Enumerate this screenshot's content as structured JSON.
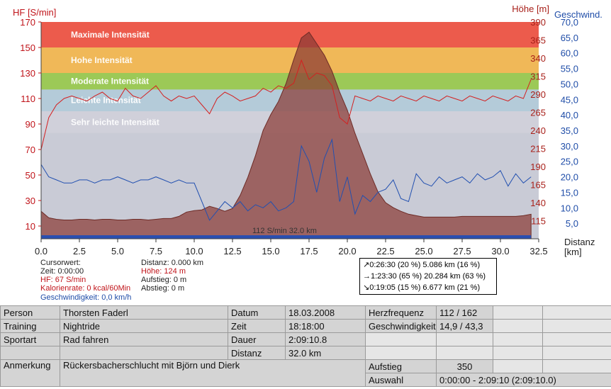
{
  "chart_data": {
    "type": "line",
    "x": [
      0,
      0.5,
      1,
      1.5,
      2,
      2.5,
      3,
      3.5,
      4,
      4.5,
      5,
      5.5,
      6,
      6.5,
      7,
      7.5,
      8,
      8.5,
      9,
      9.5,
      10,
      10.5,
      11,
      11.5,
      12,
      12.5,
      13,
      13.5,
      14,
      14.5,
      15,
      15.5,
      16,
      16.5,
      17,
      17.5,
      18,
      18.5,
      19,
      19.5,
      20,
      20.5,
      21,
      21.5,
      22,
      22.5,
      23,
      23.5,
      24,
      24.5,
      25,
      25.5,
      26,
      26.5,
      27,
      27.5,
      28,
      28.5,
      29,
      29.5,
      30,
      30.5,
      31,
      31.5,
      32
    ],
    "series": [
      {
        "name": "HF [S/min]",
        "axis": "left",
        "color": "#d42020",
        "values": [
          70,
          95,
          105,
          110,
          112,
          110,
          108,
          112,
          115,
          110,
          108,
          118,
          112,
          110,
          115,
          120,
          112,
          108,
          112,
          110,
          112,
          105,
          98,
          110,
          115,
          112,
          108,
          110,
          112,
          118,
          115,
          120,
          118,
          122,
          140,
          125,
          130,
          128,
          120,
          95,
          90,
          112,
          110,
          108,
          112,
          110,
          108,
          112,
          110,
          108,
          112,
          110,
          108,
          112,
          110,
          108,
          112,
          110,
          108,
          112,
          110,
          108,
          112,
          110,
          125
        ]
      },
      {
        "name": "Höhe [m]",
        "axis": "right_height",
        "color": "#8a3a34",
        "values": [
          128,
          119,
          117,
          116,
          116,
          117,
          117,
          116,
          117,
          117,
          116,
          116,
          117,
          117,
          116,
          117,
          118,
          118,
          121,
          127,
          129,
          130,
          135,
          132,
          128,
          132,
          150,
          175,
          205,
          240,
          262,
          280,
          305,
          338,
          368,
          376,
          360,
          344,
          322,
          293,
          268,
          236,
          208,
          180,
          155,
          140,
          133,
          128,
          124,
          122,
          120,
          120,
          120,
          120,
          120,
          121,
          121,
          121,
          121,
          121,
          121,
          121,
          121,
          122,
          124
        ]
      },
      {
        "name": "Geschwindigkeit [km/h]",
        "axis": "right_speed",
        "color": "#2250b0",
        "values": [
          24,
          20,
          19,
          18,
          18,
          19,
          19,
          18,
          19,
          19,
          20,
          19,
          18,
          19,
          19,
          20,
          19,
          18,
          19,
          18,
          18,
          12,
          6,
          9,
          12,
          10,
          12,
          9,
          11,
          10,
          12,
          9,
          10,
          12,
          30,
          25,
          15,
          26,
          32,
          12,
          20,
          8,
          14,
          12,
          15,
          16,
          19,
          13,
          12,
          21,
          18,
          17,
          20,
          18,
          19,
          20,
          18,
          21,
          19,
          20,
          22,
          17,
          21,
          18,
          20
        ]
      }
    ],
    "zones": [
      {
        "label": "Maximale Intensität",
        "from": 150,
        "to": 170,
        "color": "#ec5b4c"
      },
      {
        "label": "Hohe Intensität",
        "from": 130,
        "to": 150,
        "color": "#f0b858"
      },
      {
        "label": "Moderate Intensität",
        "from": 117,
        "to": 130,
        "color": "#9cc957"
      },
      {
        "label": "Leichte Intensität",
        "from": 100,
        "to": 117,
        "color": "#b4cbd9"
      },
      {
        "label": "Sehr leichte Intensität",
        "from": 83,
        "to": 100,
        "color": "#d0d0da"
      }
    ],
    "plot_background": "#c9cbd6",
    "xlabel": "Distanz\n[km]",
    "ylabel_left": "HF [S/min]",
    "ylabel_right_height": "Höhe  [m]",
    "ylabel_right_speed": "Geschwind.",
    "xlim": [
      0,
      32.5
    ],
    "ylim_left": [
      0,
      170
    ],
    "ylim_height": [
      90,
      390
    ],
    "ylim_speed": [
      0,
      70
    ],
    "xticks": [
      "0.0",
      "2.5",
      "5.0",
      "7.5",
      "10.0",
      "12.5",
      "15.0",
      "17.5",
      "20.0",
      "22.5",
      "25.0",
      "27.5",
      "30.0",
      "32.5"
    ],
    "yticks_left": [
      "10",
      "30",
      "50",
      "70",
      "90",
      "110",
      "130",
      "150",
      "170"
    ],
    "yticks_height": [
      "115",
      "140",
      "165",
      "190",
      "215",
      "240",
      "265",
      "290",
      "315",
      "340",
      "365",
      "390"
    ],
    "yticks_speed": [
      "5,0",
      "10,0",
      "15,0",
      "20,0",
      "25,0",
      "30,0",
      "35,0",
      "40,0",
      "45,0",
      "50,0",
      "55,0",
      "60,0",
      "65,0",
      "70,0"
    ],
    "cursor_label": "112 S/min 32.0 km",
    "grid": false
  },
  "cursor_info": {
    "title": "Cursorwert:",
    "time": "Zeit: 0:00:00",
    "hf": "HF: 67 S/min",
    "calories": "Kalorienrate: 0 kcal/60Min",
    "speed": "Geschwindigkeit: 0,0 km/h",
    "distance": "Distanz: 0.000 km",
    "height": "Höhe:  124 m",
    "ascent": "Aufstieg: 0 m",
    "descent": "Abstieg: 0 m"
  },
  "summary": {
    "up": "↗0:26:30  (20 %)  5.086 km  (16 %)",
    "flat": "→1:23:30  (65 %)  20.284 km  (63 %)",
    "down": "↘0:19:05  (15 %)  6.677 km  (21 %)"
  },
  "table": {
    "person_label": "Person",
    "person": "Thorsten Faderl",
    "training_label": "Training",
    "training": "Nightride",
    "sport_label": "Sportart",
    "sport": "Rad fahren",
    "remark_label": "Anmerkung",
    "remark": "Rückersbacherschlucht mit Björn und Dierk",
    "date_label": "Datum",
    "date": "18.03.2008",
    "time_label": "Zeit",
    "time": "18:18:00",
    "duration_label": "Dauer",
    "duration": "2:09:10.8",
    "distance_label": "Distanz",
    "distance": "32.0 km",
    "hr_label": "Herzfrequenz",
    "hr": "112 / 162",
    "speed_label": "Geschwindigkeit",
    "speed": "14,9 / 43,3",
    "ascent_label": "Aufstieg",
    "ascent": "350",
    "selection_label": "Auswahl",
    "selection": "0:00:00 - 2:09:10 (2:09:10.0)"
  }
}
